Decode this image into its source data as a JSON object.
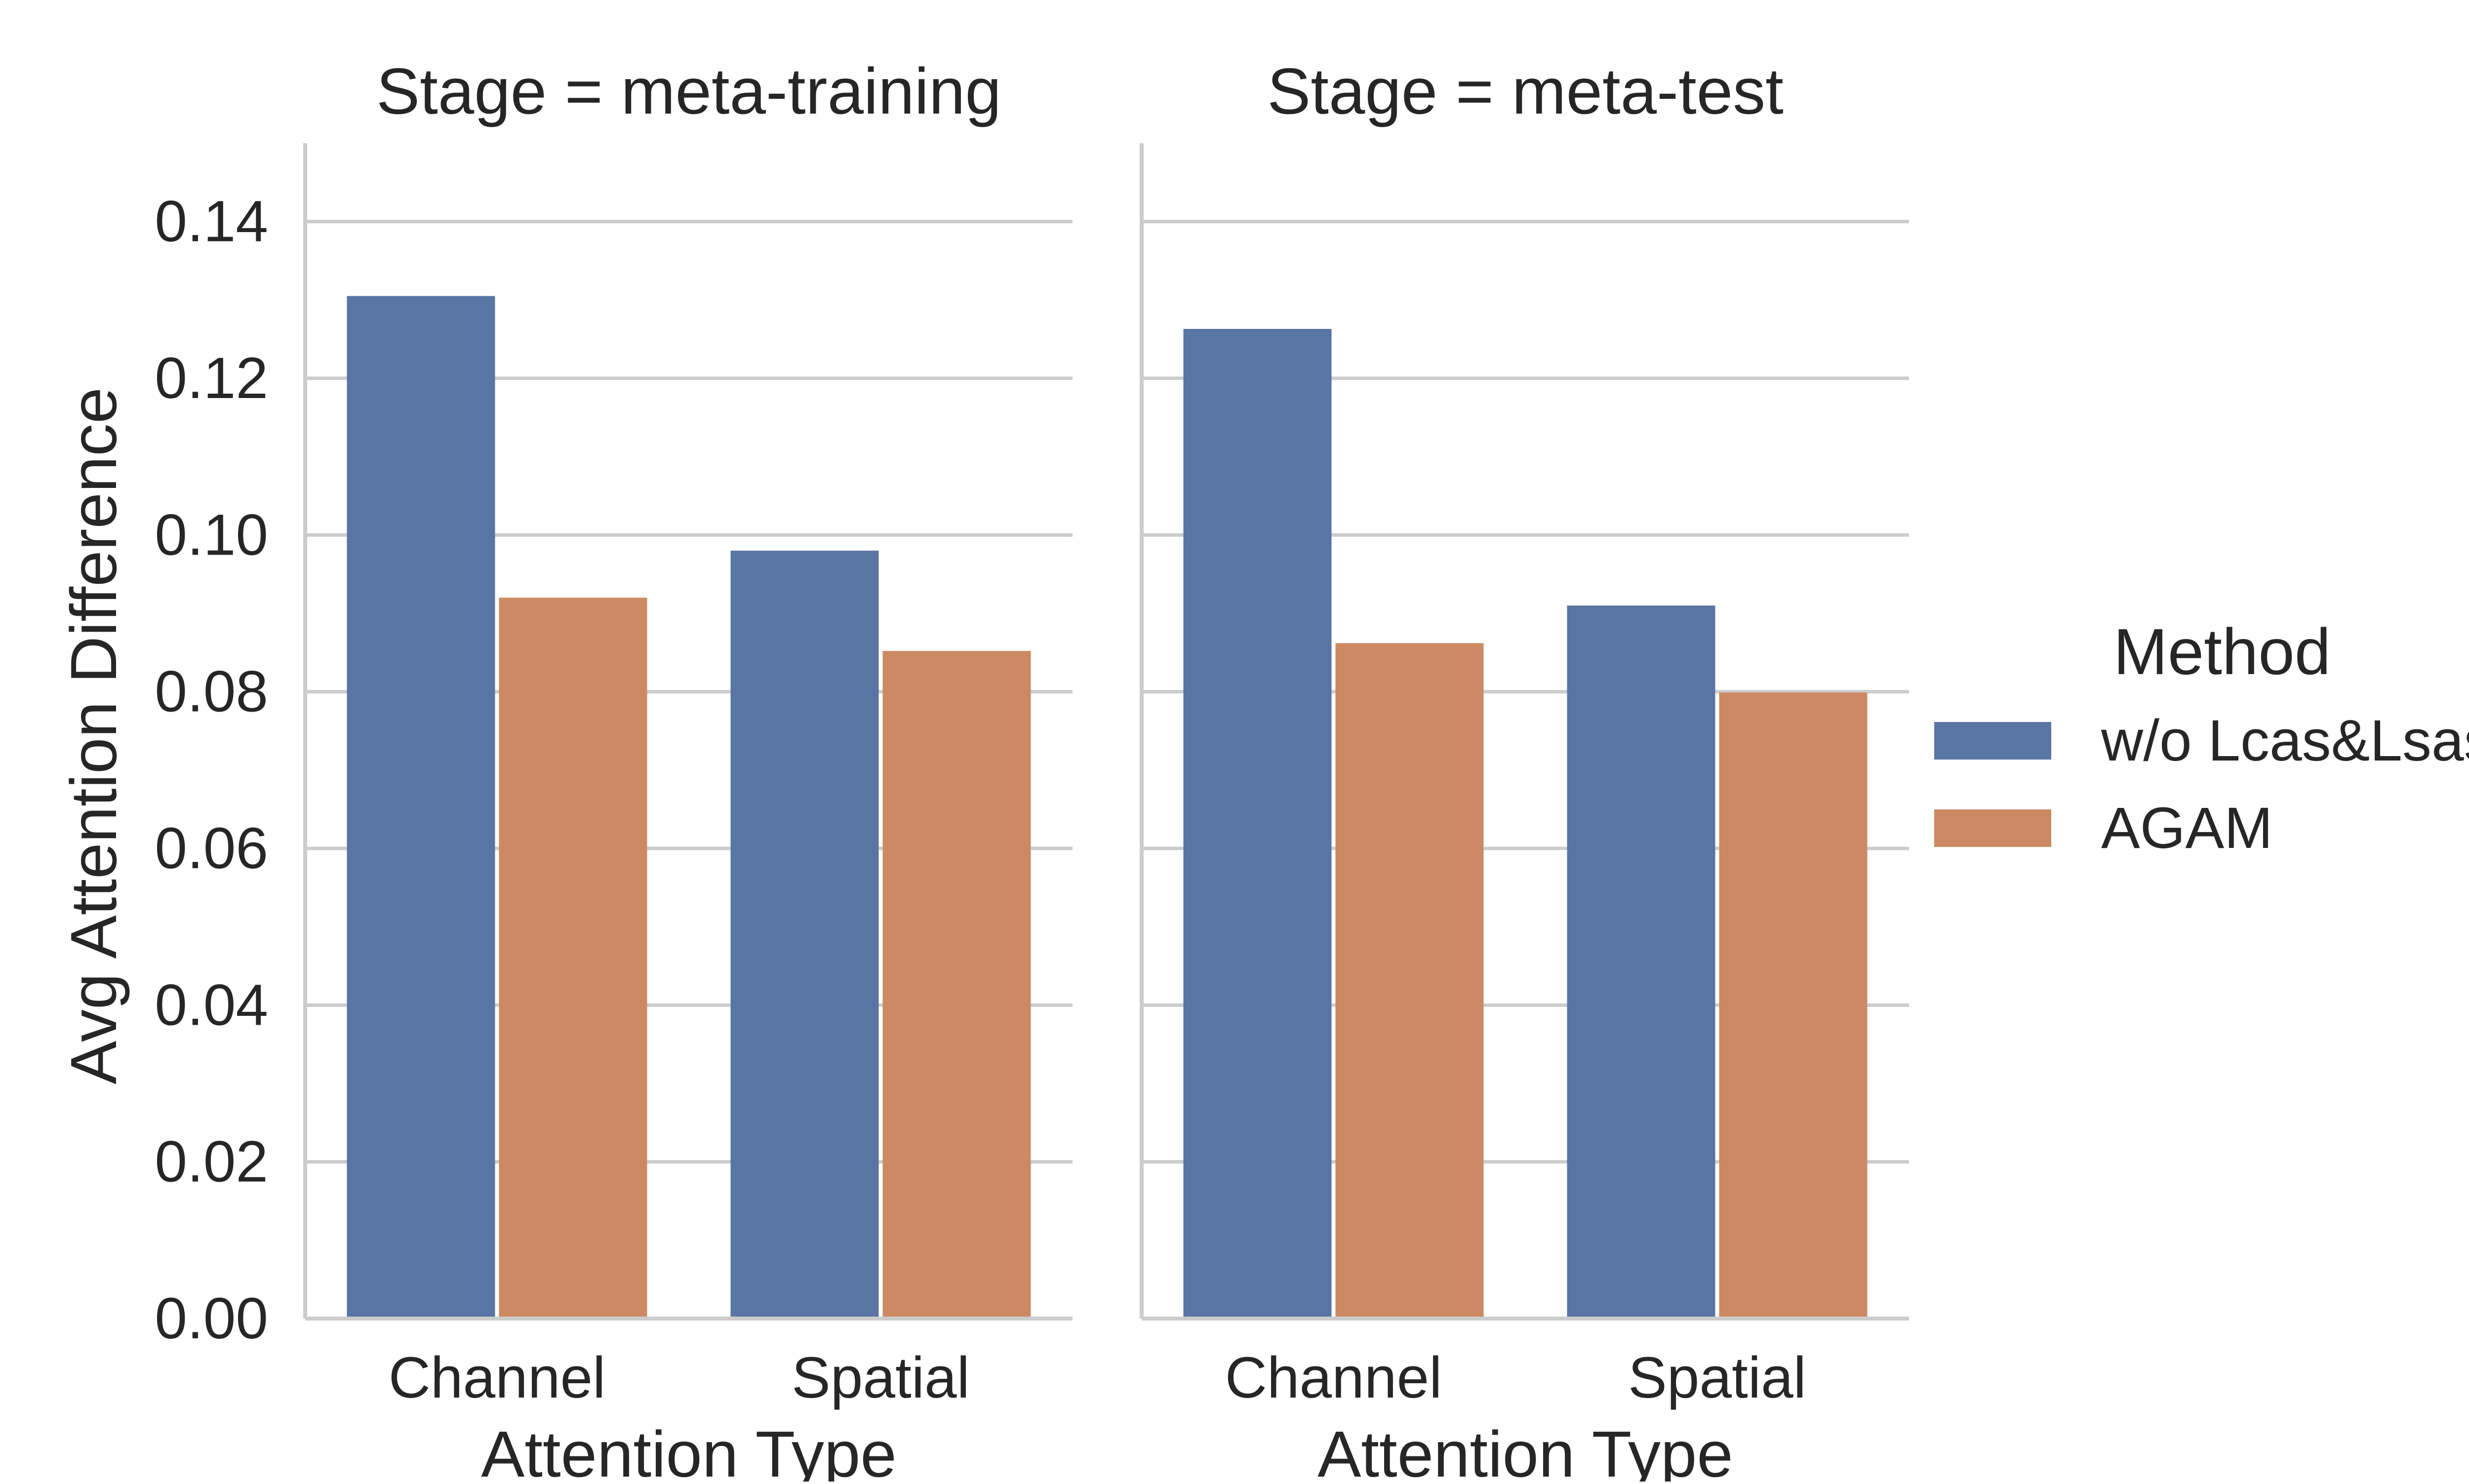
{
  "chart_data": {
    "type": "bar",
    "layout": "faceted",
    "ylabel": "Avg Attention Difference",
    "xlabel": "Attention Type",
    "ylim": [
      0,
      0.15
    ],
    "yticks": [
      "0.00",
      "0.02",
      "0.04",
      "0.06",
      "0.08",
      "0.10",
      "0.12",
      "0.14"
    ],
    "grid": "horizontal",
    "categories": [
      "Channel",
      "Spatial"
    ],
    "legend": {
      "title": "Method",
      "placement": "right",
      "entries": [
        "w/o Lcas&Lsas",
        "AGAM"
      ]
    },
    "colors": {
      "w/o Lcas&Lsas": "#5975a4",
      "AGAM": "#cc8963"
    },
    "facets": [
      {
        "title": "Stage = meta-training",
        "series": [
          {
            "name": "w/o Lcas&Lsas",
            "values": [
              0.1305,
              0.098
            ]
          },
          {
            "name": "AGAM",
            "values": [
              0.092,
              0.0852
            ]
          }
        ]
      },
      {
        "title": "Stage = meta-test",
        "series": [
          {
            "name": "w/o Lcas&Lsas",
            "values": [
              0.1263,
              0.091
            ]
          },
          {
            "name": "AGAM",
            "values": [
              0.0862,
              0.0799
            ]
          }
        ]
      }
    ]
  }
}
